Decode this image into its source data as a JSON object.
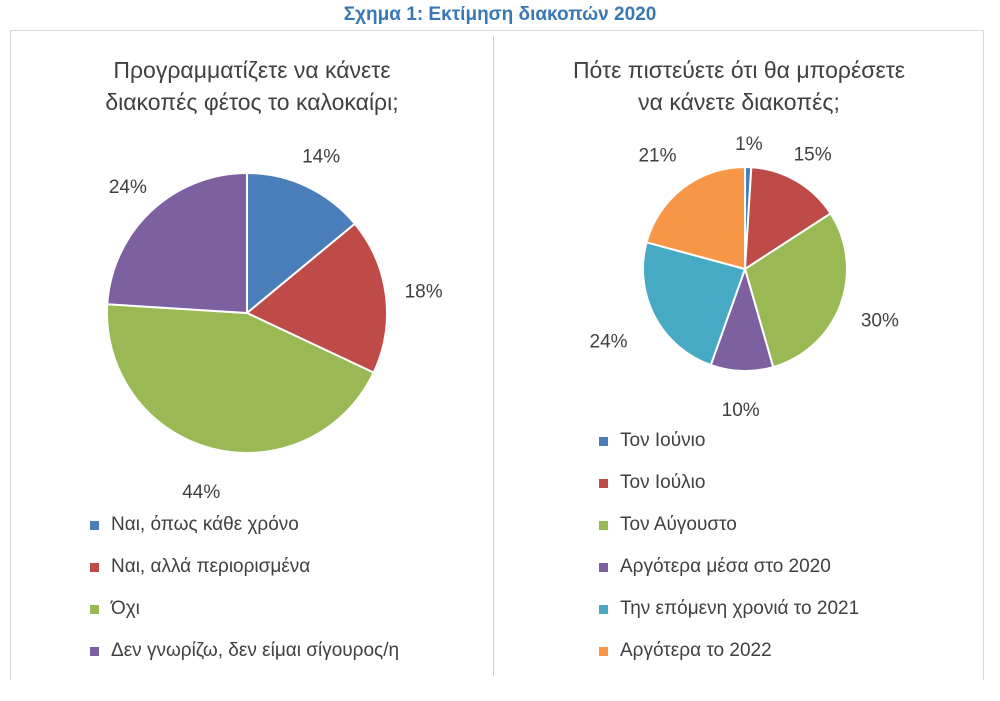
{
  "figure_title": "Σχημα 1: Εκτίμηση διακοπών 2020",
  "chart_data": [
    {
      "type": "pie",
      "title_lines": [
        "Προγραμματίζετε να κάνετε",
        "διακοπές φέτος το καλοκαίρι;"
      ],
      "categories": [
        "Ναι, όπως κάθε χρόνο",
        "Ναι, αλλά περιορισμένα",
        "Όχι",
        "Δεν γνωρίζω, δεν είμαι σίγουρος/η"
      ],
      "values": [
        14,
        18,
        44,
        24
      ],
      "data_labels": [
        "14%",
        "18%",
        "44%",
        "24%"
      ],
      "colors": [
        "#4a7ebb",
        "#be4b48",
        "#98b954",
        "#7d60a0"
      ],
      "legend_position": "bottom"
    },
    {
      "type": "pie",
      "title_lines": [
        "Πότε πιστεύετε ότι θα μπορέσετε",
        "να κάνετε διακοπές;"
      ],
      "categories": [
        "Τον Ιούνιο",
        "Τον Ιούλιο",
        "Τον Αύγουστο",
        "Αργότερα μέσα στο 2020",
        "Την επόμενη χρονιά το 2021",
        "Αργότερα το 2022"
      ],
      "values": [
        1,
        15,
        30,
        10,
        24,
        21
      ],
      "data_labels": [
        "1%",
        "15%",
        "30%",
        "10%",
        "24%",
        "21%"
      ],
      "colors": [
        "#4a7ebb",
        "#be4b48",
        "#98b954",
        "#7d60a0",
        "#46aac5",
        "#f79646"
      ],
      "legend_position": "bottom"
    }
  ]
}
